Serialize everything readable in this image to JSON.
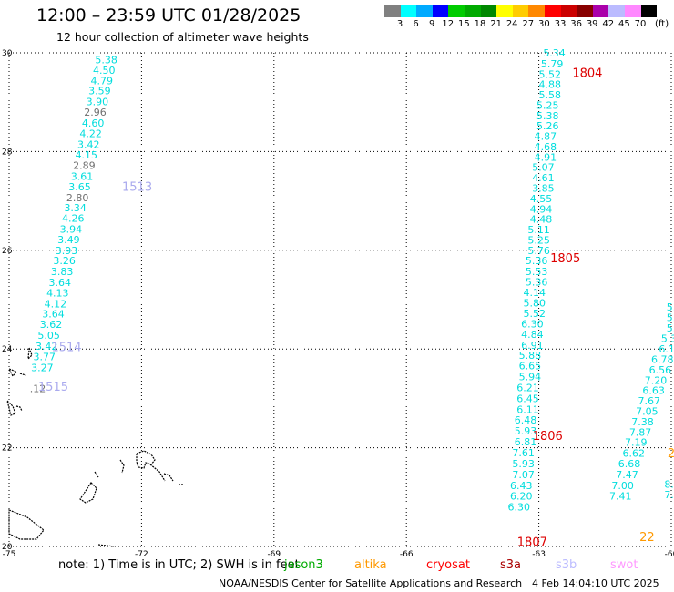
{
  "title": "12:00 – 23:59 UTC 01/28/2025",
  "subtitle": "12 hour collection of altimeter wave heights",
  "legend": {
    "unit": "(ft)",
    "bins": [
      {
        "label": "3",
        "color": "#808080"
      },
      {
        "label": "6",
        "color": "#00ffff"
      },
      {
        "label": "9",
        "color": "#00aaff"
      },
      {
        "label": "12",
        "color": "#0000ff"
      },
      {
        "label": "15",
        "color": "#00cc00"
      },
      {
        "label": "18",
        "color": "#00aa00"
      },
      {
        "label": "21",
        "color": "#008800"
      },
      {
        "label": "24",
        "color": "#ffff00"
      },
      {
        "label": "27",
        "color": "#ffcc00"
      },
      {
        "label": "30",
        "color": "#ff8800"
      },
      {
        "label": "33",
        "color": "#ff0000"
      },
      {
        "label": "36",
        "color": "#cc0000"
      },
      {
        "label": "39",
        "color": "#880000"
      },
      {
        "label": "42",
        "color": "#aa00aa"
      },
      {
        "label": "45",
        "color": "#bbbbff"
      },
      {
        "label": "70",
        "color": "#ff88ff"
      },
      {
        "label": "",
        "color": "#000000"
      }
    ]
  },
  "axes": {
    "lon_ticks": [
      "-75",
      "-72",
      "-69",
      "-66",
      "-63",
      "-60"
    ],
    "lat_ticks": [
      "30",
      "28",
      "26",
      "24",
      "22",
      "20"
    ]
  },
  "tracks": [
    {
      "color": "#00dddd",
      "points": [
        {
          "lat": 29.86,
          "lon": -72.8,
          "v": "5.38"
        },
        {
          "lat": 29.65,
          "lon": -72.85,
          "v": "4.50"
        },
        {
          "lat": 29.44,
          "lon": -72.9,
          "v": "4.79"
        },
        {
          "lat": 29.23,
          "lon": -72.95,
          "v": "3.59"
        },
        {
          "lat": 29.01,
          "lon": -73.0,
          "v": "3.90"
        },
        {
          "lat": 28.8,
          "lon": -73.05,
          "v": "2.96",
          "c": "#707070"
        },
        {
          "lat": 28.58,
          "lon": -73.1,
          "v": "4.60"
        },
        {
          "lat": 28.37,
          "lon": -73.15,
          "v": "4.22"
        },
        {
          "lat": 28.15,
          "lon": -73.2,
          "v": "3.42"
        },
        {
          "lat": 27.93,
          "lon": -73.25,
          "v": "4.15"
        },
        {
          "lat": 27.72,
          "lon": -73.3,
          "v": "2.89",
          "c": "#707070"
        },
        {
          "lat": 27.5,
          "lon": -73.35,
          "v": "3.61"
        },
        {
          "lat": 27.29,
          "lon": -73.4,
          "v": "3.65"
        },
        {
          "lat": 27.07,
          "lon": -73.45,
          "v": "2.80",
          "c": "#707070"
        },
        {
          "lat": 26.86,
          "lon": -73.5,
          "v": "3.34"
        },
        {
          "lat": 26.65,
          "lon": -73.55,
          "v": "4.26"
        },
        {
          "lat": 26.43,
          "lon": -73.6,
          "v": "3.94"
        },
        {
          "lat": 26.22,
          "lon": -73.65,
          "v": "3.49"
        },
        {
          "lat": 26.0,
          "lon": -73.7,
          "v": "3.93"
        },
        {
          "lat": 25.79,
          "lon": -73.75,
          "v": "3.26"
        },
        {
          "lat": 25.57,
          "lon": -73.8,
          "v": "3.83"
        },
        {
          "lat": 25.35,
          "lon": -73.85,
          "v": "3.64"
        },
        {
          "lat": 25.14,
          "lon": -73.9,
          "v": "4.13"
        },
        {
          "lat": 24.92,
          "lon": -73.95,
          "v": "4.12"
        },
        {
          "lat": 24.71,
          "lon": -74.0,
          "v": "3.64"
        },
        {
          "lat": 24.5,
          "lon": -74.05,
          "v": "3.62"
        },
        {
          "lat": 24.28,
          "lon": -74.1,
          "v": "5.05"
        },
        {
          "lat": 24.06,
          "lon": -74.15,
          "v": "3.42"
        },
        {
          "lat": 23.85,
          "lon": -74.2,
          "v": "3.77"
        },
        {
          "lat": 23.63,
          "lon": -74.25,
          "v": "3.27"
        },
        {
          "lat": 23.2,
          "lon": -74.35,
          "v": ".12",
          "c": "#707070"
        }
      ]
    },
    {
      "color": "#00dddd",
      "points": [
        {
          "lat": 30.0,
          "lon": -62.65,
          "v": "5.34"
        },
        {
          "lat": 29.78,
          "lon": -62.7,
          "v": "5.79"
        },
        {
          "lat": 29.57,
          "lon": -62.75,
          "v": "5.52"
        },
        {
          "lat": 29.36,
          "lon": -62.75,
          "v": "4.88"
        },
        {
          "lat": 29.15,
          "lon": -62.75,
          "v": "5.58"
        },
        {
          "lat": 28.94,
          "lon": -62.8,
          "v": "5.25"
        },
        {
          "lat": 28.73,
          "lon": -62.8,
          "v": "5.38"
        },
        {
          "lat": 28.52,
          "lon": -62.8,
          "v": "5.26"
        },
        {
          "lat": 28.31,
          "lon": -62.85,
          "v": "4.87"
        },
        {
          "lat": 28.1,
          "lon": -62.85,
          "v": "4.68"
        },
        {
          "lat": 27.89,
          "lon": -62.85,
          "v": "4.91"
        },
        {
          "lat": 27.68,
          "lon": -62.9,
          "v": "5.07"
        },
        {
          "lat": 27.47,
          "lon": -62.9,
          "v": "4.61"
        },
        {
          "lat": 27.26,
          "lon": -62.9,
          "v": "3.85"
        },
        {
          "lat": 27.05,
          "lon": -62.95,
          "v": "4.55"
        },
        {
          "lat": 26.84,
          "lon": -62.95,
          "v": "4.94"
        },
        {
          "lat": 26.63,
          "lon": -62.95,
          "v": "4.48"
        },
        {
          "lat": 26.42,
          "lon": -63.0,
          "v": "5.11"
        },
        {
          "lat": 26.21,
          "lon": -63.0,
          "v": "5.25"
        },
        {
          "lat": 26.0,
          "lon": -63.0,
          "v": "5.76"
        },
        {
          "lat": 25.79,
          "lon": -63.05,
          "v": "5.36"
        },
        {
          "lat": 25.57,
          "lon": -63.05,
          "v": "5.53"
        },
        {
          "lat": 25.36,
          "lon": -63.05,
          "v": "5.36"
        },
        {
          "lat": 25.15,
          "lon": -63.1,
          "v": "4.14"
        },
        {
          "lat": 24.94,
          "lon": -63.1,
          "v": "5.80"
        },
        {
          "lat": 24.72,
          "lon": -63.1,
          "v": "5.52"
        },
        {
          "lat": 24.51,
          "lon": -63.15,
          "v": "6.30"
        },
        {
          "lat": 24.3,
          "lon": -63.15,
          "v": "4.84"
        },
        {
          "lat": 24.08,
          "lon": -63.15,
          "v": "6.91"
        },
        {
          "lat": 23.87,
          "lon": -63.2,
          "v": "5.88"
        },
        {
          "lat": 23.66,
          "lon": -63.2,
          "v": "6.65"
        },
        {
          "lat": 23.44,
          "lon": -63.2,
          "v": "5.94"
        },
        {
          "lat": 23.22,
          "lon": -63.25,
          "v": "6.21"
        },
        {
          "lat": 23.0,
          "lon": -63.25,
          "v": "6.45"
        },
        {
          "lat": 22.78,
          "lon": -63.25,
          "v": "6.11"
        },
        {
          "lat": 22.56,
          "lon": -63.3,
          "v": "6.48"
        },
        {
          "lat": 22.34,
          "lon": -63.3,
          "v": "5.93"
        },
        {
          "lat": 22.12,
          "lon": -63.3,
          "v": "6.81"
        },
        {
          "lat": 21.9,
          "lon": -63.35,
          "v": "7.61"
        },
        {
          "lat": 21.68,
          "lon": -63.35,
          "v": "5.93"
        },
        {
          "lat": 21.46,
          "lon": -63.35,
          "v": "7.07"
        },
        {
          "lat": 21.24,
          "lon": -63.4,
          "v": "6.43"
        },
        {
          "lat": 21.02,
          "lon": -63.4,
          "v": "6.20"
        },
        {
          "lat": 20.8,
          "lon": -63.45,
          "v": "6.30"
        }
      ]
    },
    {
      "color": "#00dddd",
      "points": [
        {
          "lat": 24.85,
          "lon": -60.0,
          "v": "5."
        },
        {
          "lat": 24.64,
          "lon": -60.0,
          "v": "5."
        },
        {
          "lat": 24.43,
          "lon": -60.0,
          "v": "5."
        },
        {
          "lat": 24.22,
          "lon": -60.05,
          "v": "5.3"
        },
        {
          "lat": 24.0,
          "lon": -60.1,
          "v": "6.1"
        },
        {
          "lat": 23.79,
          "lon": -60.2,
          "v": "6.78"
        },
        {
          "lat": 23.58,
          "lon": -60.25,
          "v": "6.56"
        },
        {
          "lat": 23.37,
          "lon": -60.35,
          "v": "7.20"
        },
        {
          "lat": 23.16,
          "lon": -60.4,
          "v": "6.63"
        },
        {
          "lat": 22.95,
          "lon": -60.5,
          "v": "7.67"
        },
        {
          "lat": 22.74,
          "lon": -60.55,
          "v": "7.05"
        },
        {
          "lat": 22.53,
          "lon": -60.65,
          "v": "7.38"
        },
        {
          "lat": 22.32,
          "lon": -60.7,
          "v": "7.87"
        },
        {
          "lat": 22.11,
          "lon": -60.8,
          "v": "7.19"
        },
        {
          "lat": 21.89,
          "lon": -60.85,
          "v": "6.62"
        },
        {
          "lat": 21.68,
          "lon": -60.95,
          "v": "6.68"
        },
        {
          "lat": 21.46,
          "lon": -61.0,
          "v": "7.47"
        },
        {
          "lat": 21.24,
          "lon": -61.1,
          "v": "7.00"
        },
        {
          "lat": 21.02,
          "lon": -61.15,
          "v": "7.41"
        },
        {
          "lat": 21.26,
          "lon": -60.05,
          "v": "8."
        },
        {
          "lat": 21.05,
          "lon": -60.05,
          "v": "7."
        }
      ]
    }
  ],
  "pass_labels": [
    {
      "text": "1513",
      "lat": 27.3,
      "lon": -72.1,
      "color": "#aaaaee"
    },
    {
      "text": "1514",
      "lat": 24.05,
      "lon": -73.7,
      "color": "#aaaaee"
    },
    {
      "text": "1515",
      "lat": 23.25,
      "lon": -74.0,
      "color": "#aaaaee"
    },
    {
      "text": "1804",
      "lat": 29.6,
      "lon": -61.9,
      "color": "#dd0000"
    },
    {
      "text": "1805",
      "lat": 25.85,
      "lon": -62.4,
      "color": "#dd0000"
    },
    {
      "text": "1806",
      "lat": 22.25,
      "lon": -62.8,
      "color": "#dd0000"
    },
    {
      "text": "1807",
      "lat": 20.1,
      "lon": -63.15,
      "color": "#dd0000"
    },
    {
      "text": "22",
      "lon": -60.55,
      "lat": 20.2,
      "color": "#ff9900"
    },
    {
      "text": "2",
      "lon": -60.0,
      "lat": 21.9,
      "color": "#ff9900"
    }
  ],
  "note": "note:  1) Time is in UTC; 2) SWH is in feet",
  "missions": [
    {
      "name": "jason3",
      "color": "#00aa00"
    },
    {
      "name": "altika",
      "color": "#ff9900"
    },
    {
      "name": "cryosat",
      "color": "#ff0000"
    },
    {
      "name": "s3a",
      "color": "#aa0000"
    },
    {
      "name": "s3b",
      "color": "#bbbbff"
    },
    {
      "name": "swot",
      "color": "#ff99ff"
    }
  ],
  "footer": "NOAA/NESDIS Center for Satellite Applications and Research",
  "timestamp": "4 Feb 14:04:10 UTC 2025"
}
